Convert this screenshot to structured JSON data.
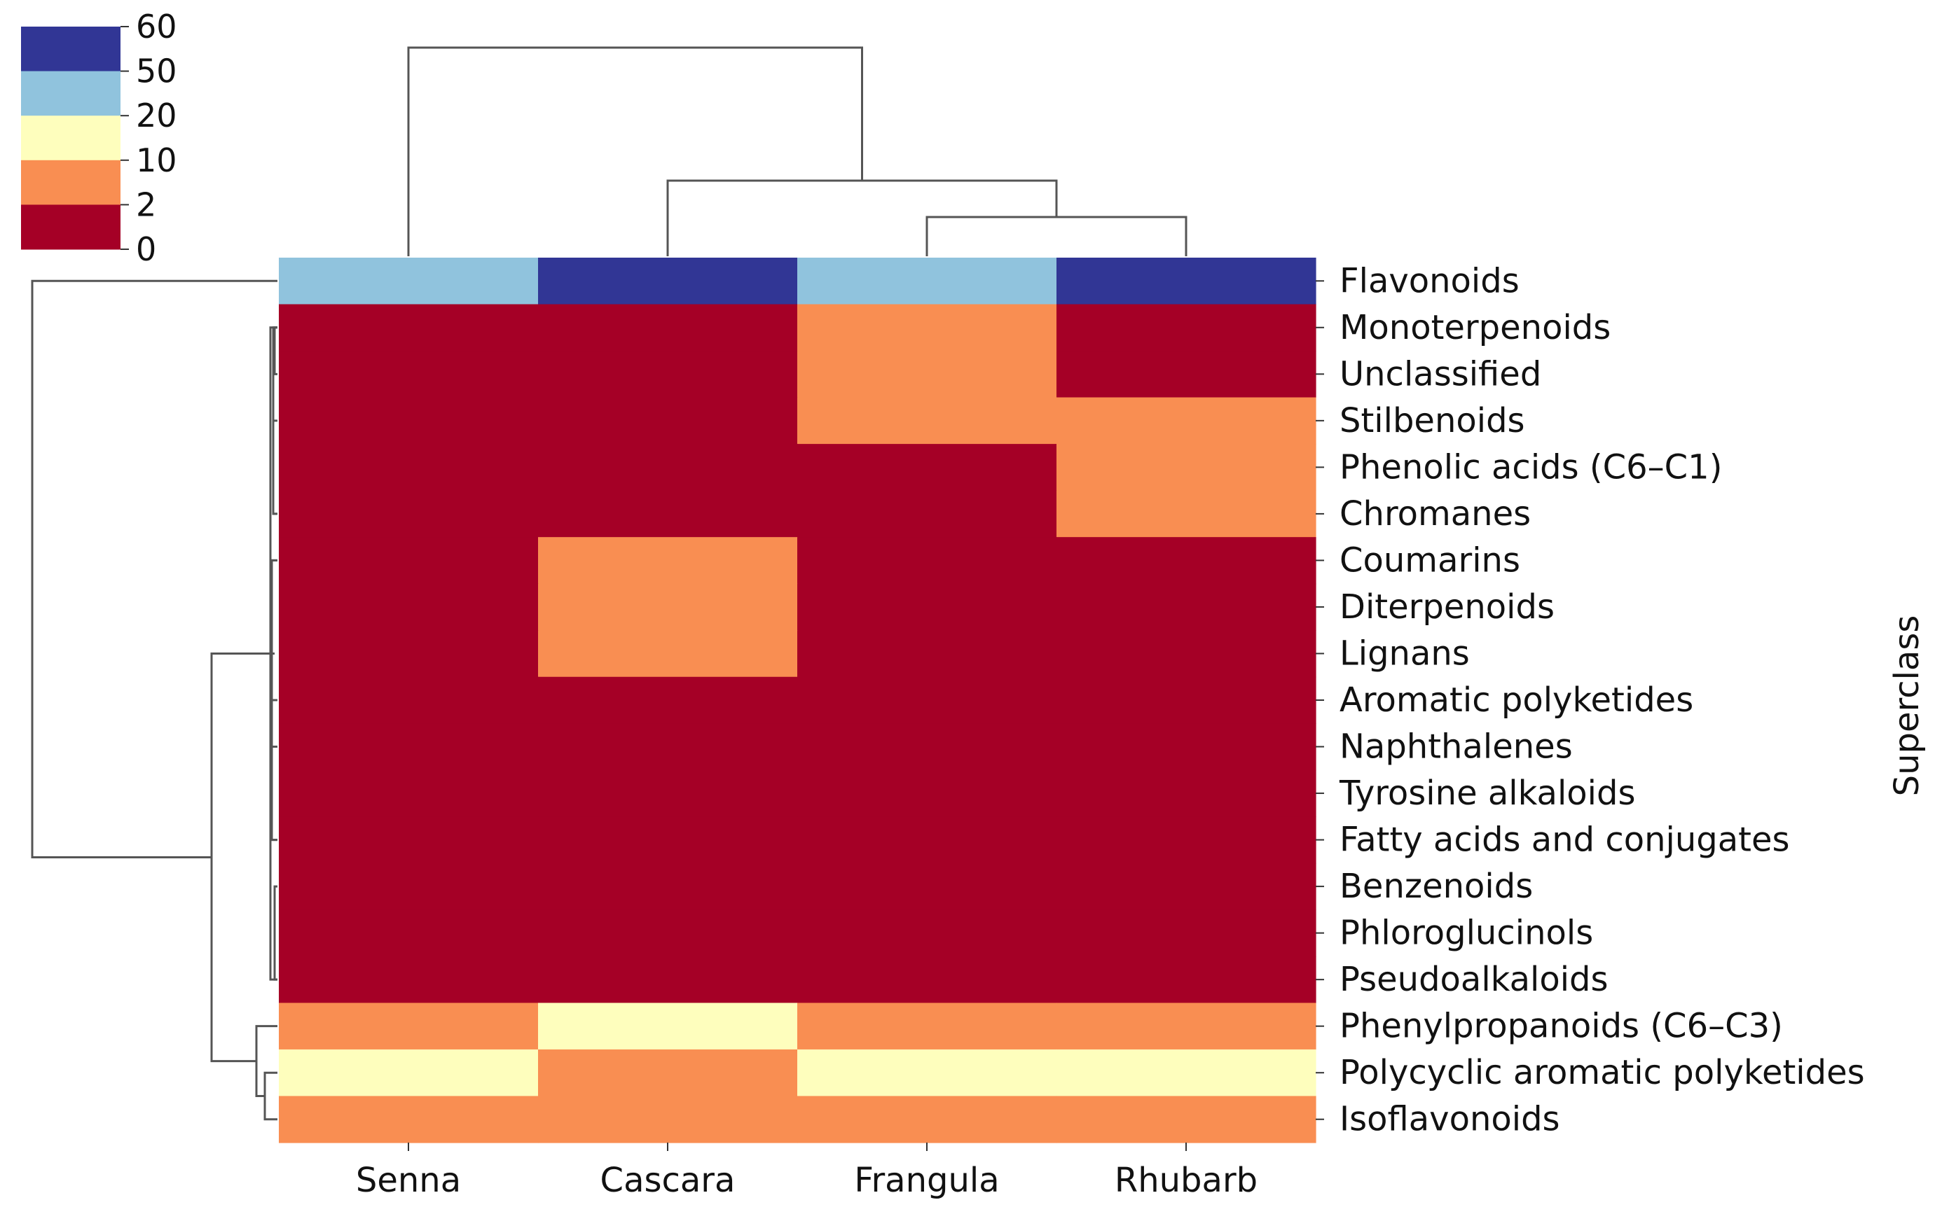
{
  "chart_data": {
    "type": "heatmap",
    "title": "",
    "columns": [
      "Senna",
      "Cascara",
      "Frangula",
      "Rhubarb"
    ],
    "rows": [
      "Flavonoids",
      "Monoterpenoids",
      "Unclassified",
      "Stilbenoids",
      "Phenolic acids (C6–C1)",
      "Chromanes",
      "Coumarins",
      "Diterpenoids",
      "Lignans",
      "Aromatic polyketides",
      "Naphthalenes",
      "Tyrosine alkaloids",
      "Fatty acids and conjugates",
      "Benzenoids",
      "Phloroglucinols",
      "Pseudoalkaloids",
      "Phenylpropanoids (C6–C3)",
      "Polycyclic aromatic polyketides",
      "Isoflavonoids"
    ],
    "value_bins": [
      [
        3,
        4,
        3,
        4
      ],
      [
        0,
        0,
        1,
        0
      ],
      [
        0,
        0,
        1,
        0
      ],
      [
        0,
        0,
        1,
        1
      ],
      [
        0,
        0,
        0,
        1
      ],
      [
        0,
        0,
        0,
        1
      ],
      [
        0,
        1,
        0,
        0
      ],
      [
        0,
        1,
        0,
        0
      ],
      [
        0,
        1,
        0,
        0
      ],
      [
        0,
        0,
        0,
        0
      ],
      [
        0,
        0,
        0,
        0
      ],
      [
        0,
        0,
        0,
        0
      ],
      [
        0,
        0,
        0,
        0
      ],
      [
        0,
        0,
        0,
        0
      ],
      [
        0,
        0,
        0,
        0
      ],
      [
        0,
        0,
        0,
        0
      ],
      [
        1,
        2,
        1,
        1
      ],
      [
        2,
        1,
        2,
        2
      ],
      [
        1,
        1,
        1,
        1
      ]
    ],
    "colorbar": {
      "boundaries": [
        0,
        2,
        10,
        20,
        50,
        60
      ],
      "tick_labels": [
        "60",
        "50",
        "20",
        "10",
        "2",
        "0"
      ],
      "colors": [
        "#a50026",
        "#f98e52",
        "#fefebd",
        "#90c3dd",
        "#313695"
      ]
    },
    "ylabel": "Superclass",
    "col_dendrogram": {
      "merges": [
        {
          "left": "Frangula",
          "right": "Rhubarb",
          "height": 0.18
        },
        {
          "left": "Cascara",
          "right": "Frangula+Rhubarb",
          "height": 0.39
        },
        {
          "left": "Senna",
          "right": "Cascara+Frangula+Rhubarb",
          "height": 1.0
        }
      ]
    },
    "row_dendrogram": {
      "merges": [
        {
          "left": "Polycyclic aromatic polyketides",
          "right": "Isoflavonoids",
          "height": 0.07
        },
        {
          "left": "Phenylpropanoids (C6–C3)",
          "right": "Polycyclic aromatic polyketides+Isoflavonoids",
          "height": 0.09
        },
        {
          "left": "Monoterpenoids–Pseudoalkaloids",
          "right": "Phenylpropanoids–Isoflavonoids",
          "height": 0.27
        },
        {
          "left": "Flavonoids",
          "right": "all others",
          "height": 1.0
        }
      ]
    }
  }
}
